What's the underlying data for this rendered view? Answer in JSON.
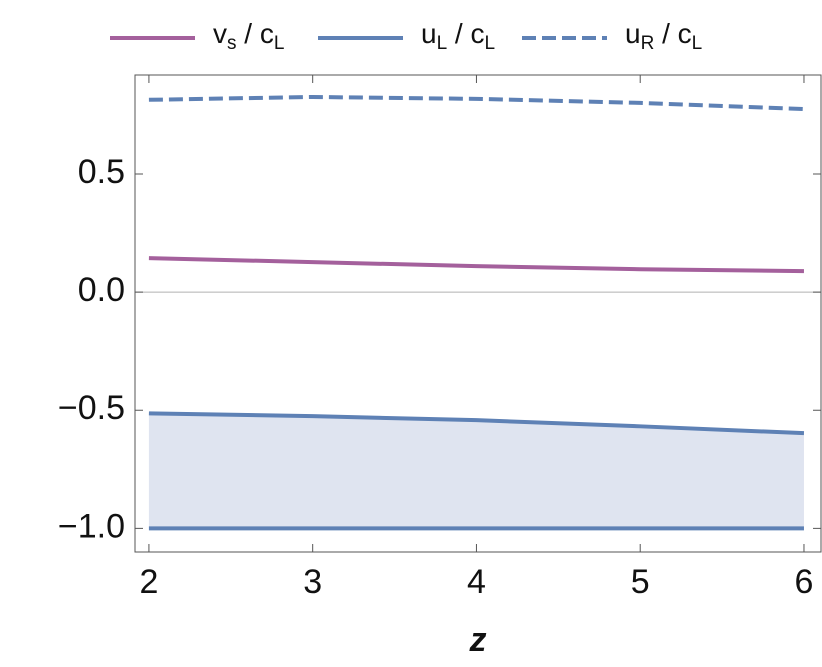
{
  "chart_data": {
    "type": "line",
    "x": [
      2,
      3,
      4,
      5,
      6
    ],
    "x_label": "z",
    "series": [
      {
        "name": "vs / cL",
        "color": "#a4609c",
        "dash": false,
        "values": [
          0.144,
          0.127,
          0.11,
          0.097,
          0.089
        ]
      },
      {
        "name": "uL / cL",
        "color": "#5e81b5",
        "dash": false,
        "values": [
          -0.513,
          -0.525,
          -0.542,
          -0.568,
          -0.597
        ]
      },
      {
        "name": "uR / cL",
        "color": "#5e81b5",
        "dash": true,
        "values": [
          0.814,
          0.826,
          0.818,
          0.801,
          0.775
        ]
      }
    ],
    "band": {
      "color": "#dfe4f0",
      "values": [
        -1,
        -1,
        -1,
        -1,
        -1
      ]
    },
    "xlim": [
      1.915,
      6.104
    ],
    "ylim": [
      -1.1,
      0.919
    ],
    "xticks": [
      2,
      3,
      4,
      5,
      6
    ],
    "yticks": [
      0.5,
      {
        "value": 0,
        "label": "0.0"
      },
      {
        "value": -0.5,
        "label": "−0.5"
      },
      {
        "value": -1,
        "label": "−1.0"
      }
    ],
    "zero_line": true
  }
}
